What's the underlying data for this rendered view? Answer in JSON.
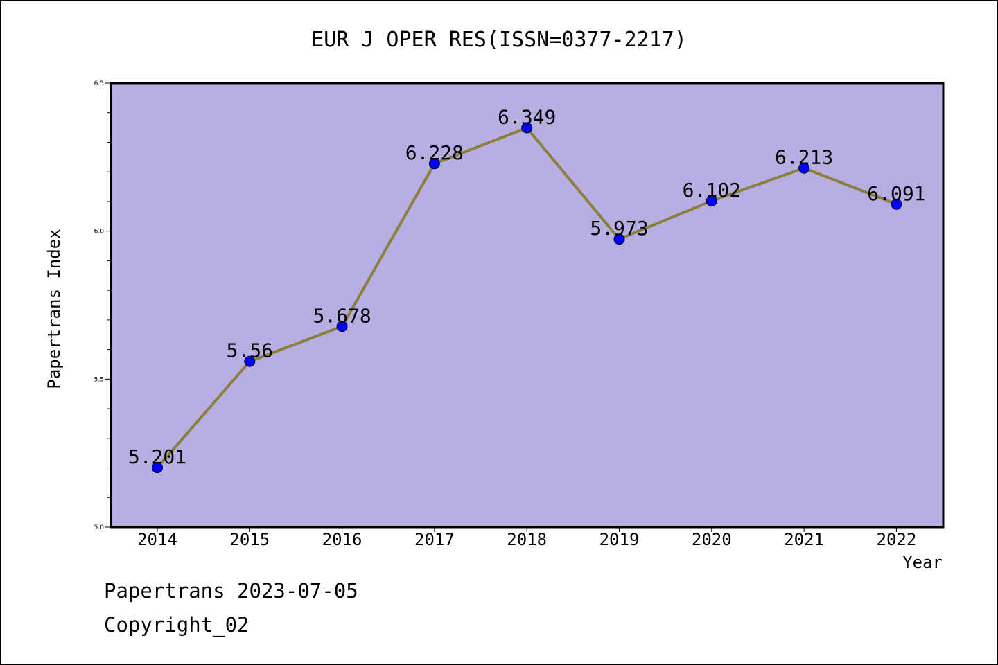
{
  "chart_data": {
    "type": "line",
    "title": "EUR J OPER RES(ISSN=0377-2217)",
    "xlabel": "Year",
    "ylabel": "Papertrans Index",
    "x": [
      "2014",
      "2015",
      "2016",
      "2017",
      "2018",
      "2019",
      "2020",
      "2021",
      "2022"
    ],
    "series": [
      {
        "values": [
          5.201,
          5.56,
          5.678,
          6.228,
          6.349,
          5.973,
          6.102,
          6.213,
          6.091
        ],
        "data_labels": [
          "5.201",
          "5.56",
          "5.678",
          "6.228",
          "6.349",
          "5.973",
          "6.102",
          "6.213",
          "6.091"
        ]
      }
    ],
    "ylim": [
      5.0,
      6.5
    ],
    "yticks": [
      "5.0",
      "5.5",
      "6.0",
      "6.5"
    ],
    "grid": false,
    "colors": {
      "plot_background": "#b5afe2",
      "line": "#8c7e3c",
      "marker": "#0000ff"
    }
  },
  "footer": {
    "line1": "Papertrans 2023-07-05",
    "line2": "Copyright_02"
  }
}
